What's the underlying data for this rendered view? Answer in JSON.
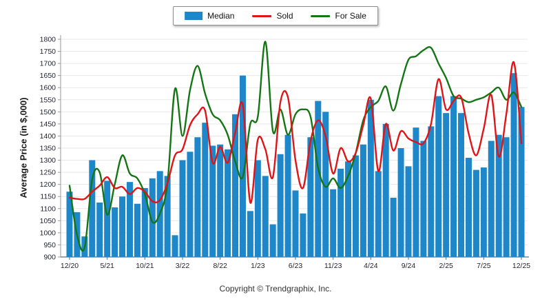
{
  "footer": {
    "copyright": "Copyright © Trendgraphix, Inc."
  },
  "chart_data": {
    "type": "combo",
    "title": "",
    "ylabel": "Average Price (in $,000)",
    "xlabel": "",
    "ylim": [
      900,
      1800
    ],
    "ytick_step": 50,
    "x_tick_every": 5,
    "grid": true,
    "legend_position": "top-center",
    "background": "#ffffff",
    "gridline_color": "#e7e7e7",
    "axis_color": "#9a9a9a",
    "tick_text_color": "#1f1f2e",
    "categories": [
      "12/20",
      "1/21",
      "2/21",
      "3/21",
      "4/21",
      "5/21",
      "6/21",
      "7/21",
      "8/21",
      "9/21",
      "10/21",
      "11/21",
      "12/21",
      "1/22",
      "2/22",
      "3/22",
      "4/22",
      "5/22",
      "6/22",
      "7/22",
      "8/22",
      "9/22",
      "10/22",
      "11/22",
      "12/22",
      "1/23",
      "2/23",
      "3/23",
      "4/23",
      "5/23",
      "6/23",
      "7/23",
      "8/23",
      "9/23",
      "10/23",
      "11/23",
      "12/23",
      "1/24",
      "2/24",
      "3/24",
      "4/24",
      "5/24",
      "6/24",
      "7/24",
      "8/24",
      "9/24",
      "10/24",
      "11/24",
      "12/24",
      "1/25",
      "2/25",
      "3/25",
      "4/25",
      "5/25",
      "6/25",
      "7/25",
      "8/25",
      "9/25",
      "10/25",
      "11/25",
      "12/25"
    ],
    "x_tick_labels": [
      "12/20",
      "5/21",
      "10/21",
      "3/22",
      "8/22",
      "1/23",
      "6/23",
      "11/23",
      "4/24",
      "9/24",
      "2/25",
      "7/25",
      "12/25"
    ],
    "series": [
      {
        "name": "Median",
        "type": "bar",
        "color": "#1d87c9",
        "values": [
          1170,
          1085,
          985,
          1300,
          1125,
          1215,
          1105,
          1150,
          1210,
          1120,
          1185,
          1225,
          1255,
          1235,
          990,
          1300,
          1335,
          1395,
          1455,
          1360,
          1365,
          1345,
          1490,
          1650,
          1090,
          1300,
          1235,
          1035,
          1325,
          1405,
          1175,
          1080,
          1395,
          1545,
          1500,
          1180,
          1265,
          1295,
          1320,
          1365,
          1550,
          1255,
          1450,
          1145,
          1350,
          1275,
          1435,
          1380,
          1440,
          1565,
          1495,
          1565,
          1495,
          1310,
          1260,
          1270,
          1380,
          1405,
          1395,
          1660,
          1520
        ]
      },
      {
        "name": "Sold",
        "type": "line",
        "color": "#e01417",
        "values": [
          1145,
          1140,
          1140,
          1170,
          1195,
          1230,
          1185,
          1190,
          1160,
          1185,
          1170,
          1130,
          1135,
          1205,
          1320,
          1345,
          1445,
          1490,
          1505,
          1290,
          1355,
          1290,
          1415,
          1530,
          1125,
          1385,
          1345,
          1230,
          1540,
          1560,
          1300,
          1185,
          1380,
          1465,
          1400,
          1245,
          1350,
          1295,
          1330,
          1445,
          1555,
          1255,
          1450,
          1340,
          1420,
          1390,
          1375,
          1370,
          1450,
          1635,
          1510,
          1545,
          1560,
          1410,
          1320,
          1430,
          1570,
          1315,
          1490,
          1705,
          1370
        ]
      },
      {
        "name": "For Sale",
        "type": "line",
        "color": "#147514",
        "values": [
          1195,
          990,
          940,
          1220,
          1250,
          1075,
          1200,
          1320,
          1245,
          1225,
          1160,
          1045,
          1080,
          1205,
          1595,
          1400,
          1590,
          1690,
          1575,
          1490,
          1465,
          1405,
          1295,
          1230,
          1450,
          1480,
          1790,
          1420,
          1510,
          1405,
          1490,
          1510,
          1480,
          1270,
          1190,
          1225,
          1185,
          1235,
          1330,
          1465,
          1520,
          1545,
          1605,
          1505,
          1615,
          1715,
          1730,
          1755,
          1765,
          1700,
          1640,
          1565,
          1555,
          1540,
          1550,
          1560,
          1580,
          1600,
          1550,
          1580,
          1520
        ]
      }
    ]
  }
}
